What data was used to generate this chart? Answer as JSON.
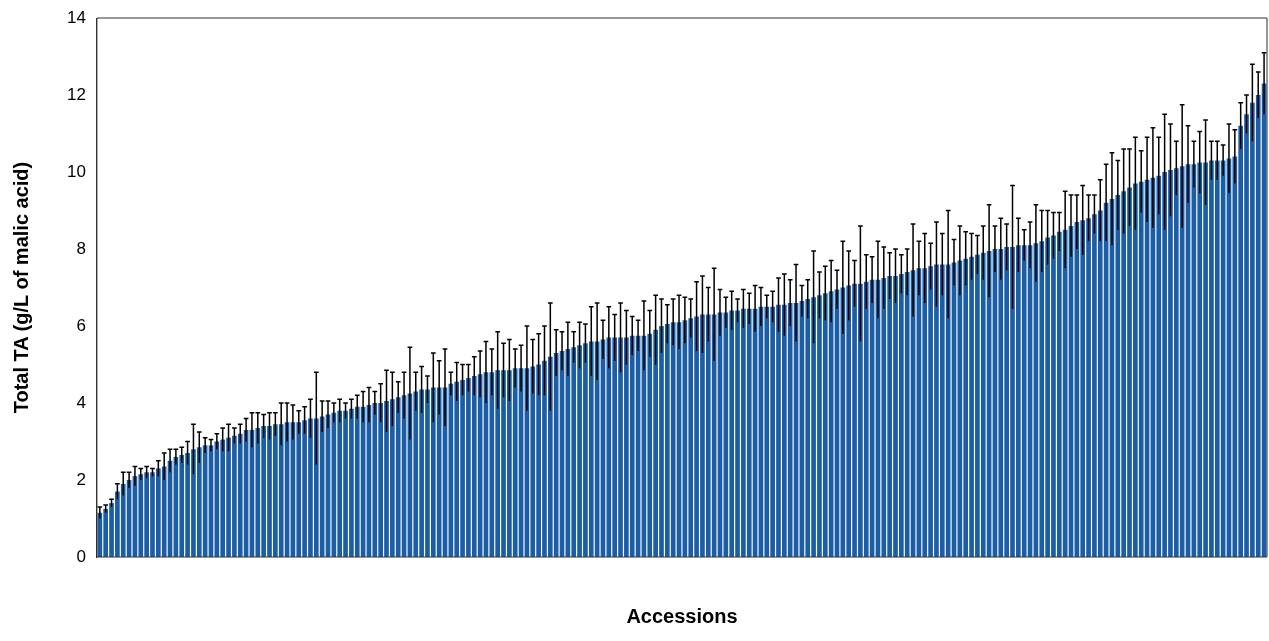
{
  "chart_data": {
    "type": "bar",
    "xlabel": "Accessions",
    "ylabel": "Total TA (g/L of malic acid)",
    "categories": [
      null,
      null,
      null,
      null,
      null,
      null,
      null,
      null,
      null,
      null,
      null,
      null,
      null,
      null,
      null,
      null,
      null,
      null,
      null,
      null,
      null,
      null,
      null,
      null,
      null,
      null,
      null,
      null,
      null,
      null,
      null,
      null,
      null,
      null,
      null,
      null,
      null,
      null,
      null,
      null,
      null,
      null,
      null,
      null,
      null,
      null,
      null,
      null,
      null,
      null,
      null,
      null,
      null,
      null,
      null,
      null,
      null,
      null,
      null,
      null,
      null,
      null,
      null,
      null,
      null,
      null,
      null,
      null,
      null,
      null,
      null,
      null,
      null,
      null,
      null,
      null,
      null,
      null,
      null,
      null,
      null,
      null,
      null,
      null,
      null,
      null,
      null,
      null,
      null,
      null,
      null,
      null,
      null,
      null,
      null,
      null,
      null,
      null,
      null,
      null,
      null,
      null,
      null,
      null,
      null,
      null,
      null,
      null,
      null,
      null,
      null,
      null,
      null,
      null,
      null,
      null,
      null,
      null,
      null,
      null,
      null,
      null,
      null,
      null,
      null,
      null,
      null,
      null,
      null,
      null,
      null,
      null,
      null,
      null,
      null,
      null,
      null,
      null,
      null,
      null,
      null,
      null,
      null,
      null,
      null,
      null,
      null,
      null,
      null,
      null,
      null,
      null,
      null,
      null,
      null,
      null,
      null,
      null,
      null,
      null,
      null,
      null,
      null,
      null,
      null,
      null,
      null,
      null,
      null,
      null,
      null,
      null,
      null,
      null,
      null,
      null,
      null,
      null,
      null,
      null,
      null,
      null,
      null,
      null,
      null,
      null,
      null,
      null,
      null,
      null,
      null,
      null,
      null,
      null,
      null,
      null,
      null,
      null,
      null,
      null
    ],
    "values": [
      1.15,
      1.25,
      1.4,
      1.7,
      1.9,
      2.0,
      2.1,
      2.15,
      2.2,
      2.2,
      2.3,
      2.35,
      2.5,
      2.6,
      2.65,
      2.7,
      2.8,
      2.85,
      2.9,
      2.9,
      3.0,
      3.05,
      3.1,
      3.15,
      3.2,
      3.3,
      3.3,
      3.35,
      3.4,
      3.4,
      3.45,
      3.45,
      3.5,
      3.5,
      3.5,
      3.55,
      3.6,
      3.6,
      3.65,
      3.7,
      3.75,
      3.8,
      3.8,
      3.85,
      3.9,
      3.9,
      3.95,
      4.0,
      4.0,
      4.05,
      4.1,
      4.15,
      4.2,
      4.25,
      4.3,
      4.35,
      4.35,
      4.4,
      4.4,
      4.4,
      4.5,
      4.55,
      4.6,
      4.65,
      4.7,
      4.75,
      4.8,
      4.8,
      4.85,
      4.85,
      4.85,
      4.9,
      4.9,
      4.9,
      4.95,
      5.0,
      5.1,
      5.2,
      5.3,
      5.35,
      5.4,
      5.45,
      5.5,
      5.55,
      5.6,
      5.6,
      5.65,
      5.7,
      5.7,
      5.7,
      5.7,
      5.75,
      5.75,
      5.75,
      5.8,
      5.9,
      6.0,
      6.05,
      6.1,
      6.1,
      6.15,
      6.2,
      6.25,
      6.3,
      6.3,
      6.3,
      6.35,
      6.35,
      6.4,
      6.4,
      6.45,
      6.45,
      6.45,
      6.5,
      6.5,
      6.5,
      6.55,
      6.55,
      6.6,
      6.6,
      6.65,
      6.7,
      6.75,
      6.8,
      6.85,
      6.9,
      6.95,
      7.0,
      7.05,
      7.1,
      7.1,
      7.15,
      7.2,
      7.2,
      7.25,
      7.3,
      7.3,
      7.35,
      7.4,
      7.45,
      7.5,
      7.5,
      7.55,
      7.6,
      7.6,
      7.6,
      7.65,
      7.7,
      7.75,
      7.8,
      7.85,
      7.9,
      7.95,
      8.0,
      8.0,
      8.05,
      8.05,
      8.1,
      8.1,
      8.1,
      8.15,
      8.2,
      8.3,
      8.35,
      8.45,
      8.5,
      8.6,
      8.7,
      8.75,
      8.8,
      8.9,
      9.0,
      9.2,
      9.3,
      9.4,
      9.5,
      9.6,
      9.7,
      9.75,
      9.8,
      9.85,
      9.9,
      10.0,
      10.05,
      10.1,
      10.15,
      10.2,
      10.2,
      10.25,
      10.25,
      10.3,
      10.3,
      10.3,
      10.35,
      10.4,
      11.2,
      11.5,
      11.8,
      12.0,
      12.3
    ],
    "errors": [
      0.15,
      0.1,
      0.1,
      0.2,
      0.3,
      0.2,
      0.25,
      0.15,
      0.15,
      0.1,
      0.2,
      0.35,
      0.3,
      0.2,
      0.2,
      0.3,
      0.65,
      0.4,
      0.2,
      0.15,
      0.2,
      0.3,
      0.35,
      0.2,
      0.25,
      0.3,
      0.45,
      0.4,
      0.3,
      0.35,
      0.3,
      0.55,
      0.5,
      0.45,
      0.3,
      0.35,
      0.5,
      1.2,
      0.4,
      0.35,
      0.25,
      0.3,
      0.2,
      0.25,
      0.3,
      0.4,
      0.45,
      0.3,
      0.5,
      0.8,
      0.7,
      0.4,
      0.6,
      1.2,
      0.5,
      0.6,
      0.35,
      0.9,
      0.7,
      1.0,
      0.3,
      0.5,
      0.4,
      0.35,
      0.5,
      0.6,
      0.8,
      0.6,
      1.0,
      0.7,
      0.8,
      0.5,
      0.6,
      1.1,
      0.7,
      0.8,
      0.9,
      1.4,
      0.6,
      0.5,
      0.7,
      0.4,
      0.6,
      0.5,
      0.9,
      1.0,
      0.5,
      0.8,
      0.6,
      0.9,
      0.7,
      0.5,
      0.4,
      0.9,
      0.6,
      0.9,
      0.7,
      0.5,
      0.6,
      0.7,
      0.6,
      0.5,
      0.9,
      1.0,
      0.7,
      1.2,
      0.6,
      0.4,
      0.5,
      0.3,
      0.5,
      0.4,
      0.6,
      0.5,
      0.3,
      0.4,
      0.7,
      0.8,
      0.6,
      1.0,
      0.4,
      0.5,
      1.2,
      0.6,
      0.7,
      0.8,
      0.5,
      1.2,
      0.9,
      0.6,
      1.5,
      0.7,
      0.6,
      1.0,
      0.8,
      0.6,
      0.7,
      0.5,
      0.6,
      1.2,
      0.7,
      0.9,
      0.6,
      1.1,
      0.8,
      1.4,
      0.6,
      0.9,
      0.7,
      0.6,
      0.5,
      0.7,
      1.2,
      0.6,
      0.8,
      0.6,
      1.6,
      0.7,
      0.4,
      0.6,
      1.0,
      0.8,
      0.7,
      0.6,
      0.5,
      1.0,
      0.8,
      0.7,
      0.9,
      0.6,
      0.5,
      0.8,
      1.0,
      1.2,
      0.9,
      1.1,
      1.0,
      1.2,
      0.8,
      1.1,
      1.3,
      1.0,
      1.5,
      1.2,
      0.7,
      1.6,
      1.0,
      0.6,
      0.8,
      1.1,
      0.5,
      0.5,
      0.4,
      0.9,
      0.7,
      0.6,
      0.5,
      1.0,
      0.6,
      0.8
    ],
    "color": "#1c5ea6",
    "ylim": [
      0,
      14
    ],
    "yticks": [
      0,
      2,
      4,
      6,
      8,
      10,
      12,
      14
    ]
  }
}
